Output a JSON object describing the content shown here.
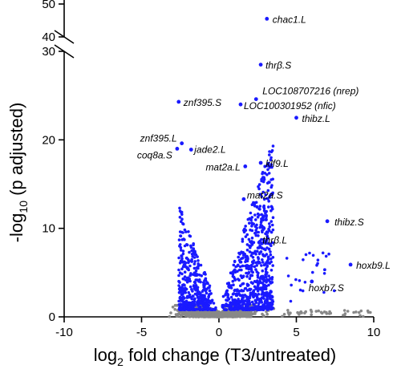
{
  "chart_data": {
    "type": "scatter",
    "title": "",
    "xlabel": {
      "prefix": "log",
      "sub": "2",
      "rest": " fold change (T3/untreated)"
    },
    "ylabel": {
      "prefix": "-log",
      "sub": "10",
      "rest": " (p adjusted)"
    },
    "xlim": [
      -10,
      10
    ],
    "xticks": [
      -10,
      -5,
      0,
      5,
      10
    ],
    "ylim_lower": [
      0,
      30
    ],
    "yticks_lower": [
      0,
      10,
      20,
      30
    ],
    "ylim_upper": [
      40,
      50
    ],
    "yticks_upper": [
      40,
      50
    ],
    "grid": false,
    "colors": {
      "significant": "#1a1aff",
      "not_significant": "#888888"
    },
    "labeled_points": [
      {
        "label": "chac1.L",
        "x": 3.1,
        "y": 45.5
      },
      {
        "label": "thrβ.S",
        "x": 2.7,
        "y": 28.5
      },
      {
        "label": "LOC108707216 (nrep)",
        "x": 2.4,
        "y": 24.6
      },
      {
        "label": "LOC100301952 (nfic)",
        "x": 1.4,
        "y": 24.0
      },
      {
        "label": "thibz.L",
        "x": 5.0,
        "y": 22.5
      },
      {
        "label": "znf395.S",
        "x": -2.6,
        "y": 24.3
      },
      {
        "label": "znf395.L",
        "x": -2.4,
        "y": 19.6
      },
      {
        "label": "jade2.L",
        "x": -1.8,
        "y": 18.9
      },
      {
        "label": "coq8a.S",
        "x": -2.7,
        "y": 19.0
      },
      {
        "label": "mat2a.L",
        "x": 1.7,
        "y": 17.0
      },
      {
        "label": "klf9.L",
        "x": 2.7,
        "y": 17.4
      },
      {
        "label": "mat2a.S",
        "x": 1.6,
        "y": 13.3
      },
      {
        "label": "thibz.S",
        "x": 7.0,
        "y": 10.8
      },
      {
        "label": "thrβ.L",
        "x": 2.6,
        "y": 8.4
      },
      {
        "label": "hoxb9.L",
        "x": 8.5,
        "y": 5.9
      },
      {
        "label": "hoxb7.S",
        "x": 6.0,
        "y": 4.0
      }
    ]
  }
}
